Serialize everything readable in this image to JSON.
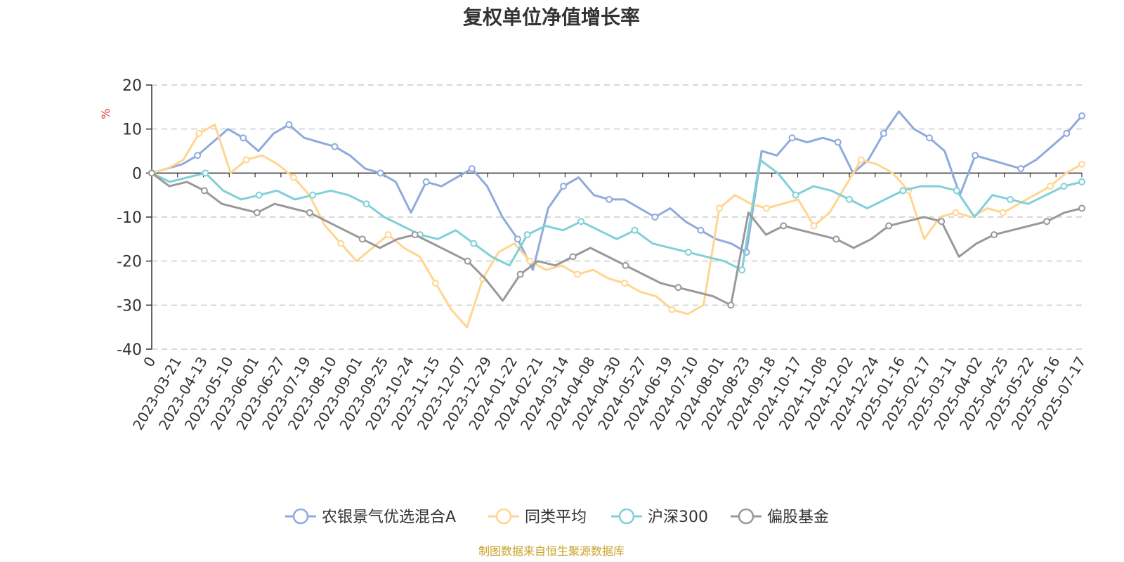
{
  "chart_data": {
    "type": "line",
    "title": "复权单位净值增长率",
    "ylabel": "%",
    "ylim": [
      -40,
      20
    ],
    "yticks": [
      "20",
      "10",
      "0",
      "-10",
      "-20",
      "-30",
      "-40"
    ],
    "grid": true,
    "legend_position": "bottom-center",
    "source": "制图数据来自恒生聚源数据库",
    "x_labels": [
      "0",
      "2023-03-21",
      "2023-04-13",
      "2023-05-10",
      "2023-06-01",
      "2023-06-27",
      "2023-07-19",
      "2023-08-10",
      "2023-09-01",
      "2023-09-25",
      "2023-10-24",
      "2023-11-15",
      "2023-12-07",
      "2023-12-29",
      "2024-01-22",
      "2024-02-21",
      "2024-03-14",
      "2024-04-08",
      "2024-04-30",
      "2024-05-27",
      "2024-06-19",
      "2024-07-10",
      "2024-08-01",
      "2024-08-23",
      "2024-09-18",
      "2024-10-17",
      "2024-11-08",
      "2024-12-02",
      "2024-12-24",
      "2025-01-16",
      "2025-02-17",
      "2025-03-11",
      "2025-04-02",
      "2025-04-25",
      "2025-05-22",
      "2025-06-16",
      "2025-07-17"
    ],
    "series": [
      {
        "name": "农银景气优选混合A",
        "color": "#8faadc",
        "values": [
          0,
          1,
          2,
          4,
          7,
          10,
          8,
          5,
          9,
          11,
          8,
          7,
          6,
          4,
          1,
          0,
          -2,
          -9,
          -2,
          -3,
          -1,
          1,
          -3,
          -10,
          -15,
          -22,
          -8,
          -3,
          -1,
          -5,
          -6,
          -6,
          -8,
          -10,
          -8,
          -11,
          -13,
          -15,
          -16,
          -18,
          5,
          4,
          8,
          7,
          8,
          7,
          0,
          3,
          9,
          14,
          10,
          8,
          5,
          -5,
          4,
          3,
          2,
          1,
          3,
          6,
          9,
          13
        ]
      },
      {
        "name": "同类平均",
        "color": "#ffd591",
        "values": [
          0,
          1,
          3,
          9,
          11,
          0,
          3,
          4,
          2,
          -1,
          -5,
          -12,
          -16,
          -20,
          -17,
          -14,
          -17,
          -19,
          -25,
          -31,
          -35,
          -24,
          -18,
          -16,
          -20,
          -22,
          -21,
          -23,
          -22,
          -24,
          -25,
          -27,
          -28,
          -31,
          -32,
          -30,
          -8,
          -5,
          -7,
          -8,
          -7,
          -6,
          -12,
          -9,
          -3,
          3,
          2,
          0,
          -4,
          -15,
          -10,
          -9,
          -10,
          -8,
          -9,
          -7,
          -5,
          -3,
          0,
          2
        ]
      },
      {
        "name": "沪深300",
        "color": "#80d0d8",
        "values": [
          0,
          -2,
          -1,
          0,
          -4,
          -6,
          -5,
          -4,
          -6,
          -5,
          -4,
          -5,
          -7,
          -10,
          -12,
          -14,
          -15,
          -13,
          -16,
          -19,
          -21,
          -14,
          -12,
          -13,
          -11,
          -13,
          -15,
          -13,
          -16,
          -17,
          -18,
          -19,
          -20,
          -22,
          3,
          0,
          -5,
          -3,
          -4,
          -6,
          -8,
          -6,
          -4,
          -3,
          -3,
          -4,
          -10,
          -5,
          -6,
          -7,
          -5,
          -3,
          -2
        ]
      },
      {
        "name": "偏股基金",
        "color": "#999999",
        "values": [
          0,
          -3,
          -2,
          -4,
          -7,
          -8,
          -9,
          -7,
          -8,
          -9,
          -11,
          -13,
          -15,
          -17,
          -15,
          -14,
          -16,
          -18,
          -20,
          -24,
          -29,
          -23,
          -20,
          -21,
          -19,
          -17,
          -19,
          -21,
          -23,
          -25,
          -26,
          -27,
          -28,
          -30,
          -9,
          -14,
          -12,
          -13,
          -14,
          -15,
          -17,
          -15,
          -12,
          -11,
          -10,
          -11,
          -19,
          -16,
          -14,
          -13,
          -12,
          -11,
          -9,
          -8
        ]
      }
    ]
  }
}
